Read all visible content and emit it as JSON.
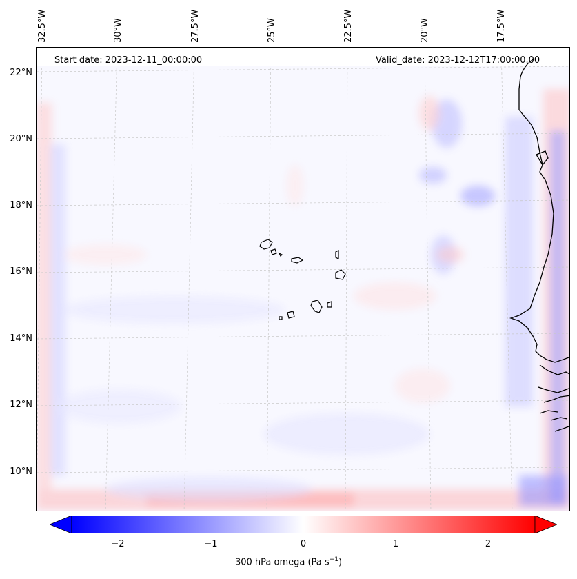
{
  "header": {
    "start_date": "Start date: 2023-12-11_00:00:00",
    "valid_date": "Valid_date: 2023-12-12T17:00:00.00"
  },
  "axes": {
    "longitude_labels": [
      "32.5°W",
      "30°W",
      "27.5°W",
      "25°W",
      "22.5°W",
      "20°W",
      "17.5°W"
    ],
    "latitude_labels": [
      "22°N",
      "20°N",
      "18°N",
      "16°N",
      "14°N",
      "12°N",
      "10°N"
    ]
  },
  "colorbar": {
    "label": "300 hPa omega (Pa s",
    "label_sup": "−1",
    "label_close": ")",
    "ticks": [
      "−2",
      "−1",
      "0",
      "1",
      "2"
    ],
    "min": -2.5,
    "max": 2.5,
    "colors": {
      "negative": "#0000ff",
      "zero": "#ffffff",
      "positive": "#ff0000"
    }
  },
  "colors": {
    "coastline": "#000000",
    "gridline": "#c8c8c8",
    "background": "#f8f8ff"
  }
}
